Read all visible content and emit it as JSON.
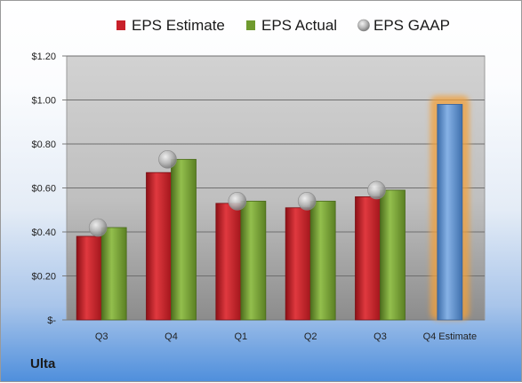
{
  "company": "Ulta",
  "chart_data": {
    "type": "bar",
    "categories": [
      "Q3",
      "Q4",
      "Q1",
      "Q2",
      "Q3",
      "Q4 Estimate"
    ],
    "series": [
      {
        "name": "EPS Estimate",
        "type": "bar",
        "color": "#c8202a",
        "values": [
          0.38,
          0.67,
          0.53,
          0.51,
          0.56,
          null
        ]
      },
      {
        "name": "EPS Actual",
        "type": "bar",
        "color": "#6f9a2e",
        "values": [
          0.42,
          0.73,
          0.54,
          0.54,
          0.59,
          null
        ]
      },
      {
        "name": "EPS GAAP",
        "type": "scatter",
        "color": "#a8a8a8",
        "values": [
          0.42,
          0.73,
          0.54,
          0.54,
          0.59,
          null
        ]
      },
      {
        "name": "Q4 Estimate",
        "type": "bar",
        "color": "#4f86c6",
        "highlight_color": "#f2a03a",
        "values": [
          null,
          null,
          null,
          null,
          null,
          0.98
        ]
      }
    ],
    "ylim": [
      0,
      1.2
    ],
    "yticks": [
      0,
      0.2,
      0.4,
      0.6,
      0.8,
      1.0,
      1.2
    ],
    "ytick_labels": [
      "$-",
      "$0.20",
      "$0.40",
      "$0.60",
      "$0.80",
      "$1.00",
      "$1.20"
    ],
    "legend": [
      "EPS Estimate",
      "EPS Actual",
      "EPS GAAP"
    ],
    "legend_position": "top",
    "grid": true
  }
}
